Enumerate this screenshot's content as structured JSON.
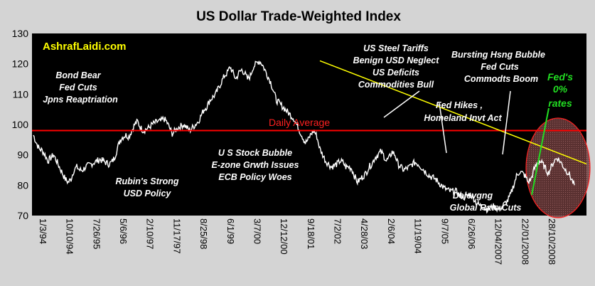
{
  "chart_data": {
    "type": "line",
    "title": "US Dollar Trade-Weighted Index",
    "xlabel": "",
    "ylabel": "",
    "ylim": [
      70,
      130
    ],
    "yticks": [
      70,
      80,
      90,
      100,
      110,
      120,
      130
    ],
    "xticks": [
      "1/3/94",
      "10/10/94",
      "7/26/95",
      "5/6/96",
      "2/10/97",
      "11/17/97",
      "8/25/98",
      "6/1/99",
      "3/7/00",
      "12/12/00",
      "9/18/01",
      "7/2/02",
      "4/28/03",
      "2/6/04",
      "11/19/04",
      "9/7/05",
      "6/26/06",
      "12/04/2007",
      "22/01/2008",
      "28/10/2008"
    ],
    "series": [
      {
        "values": [
          96.5,
          94,
          92,
          91.5,
          90,
          88,
          89,
          90,
          88,
          86,
          84,
          82,
          81,
          82,
          85,
          86,
          85,
          85,
          86,
          86.5,
          87,
          87.5,
          88,
          88.5,
          88,
          87.5,
          87,
          87.5,
          89,
          92,
          95,
          96,
          96.5,
          96,
          98,
          100,
          101,
          99,
          98,
          98.5,
          99,
          100,
          100.5,
          101,
          101,
          102,
          101,
          99,
          97,
          98,
          99,
          99.5,
          100,
          99,
          98,
          99,
          100,
          101,
          103,
          105,
          106,
          108,
          109,
          110,
          112,
          114,
          116,
          117,
          119,
          117,
          115,
          117,
          118,
          117,
          115,
          116,
          119,
          120,
          121,
          120,
          118,
          116,
          114,
          111,
          108,
          107,
          106,
          105,
          104,
          103,
          102,
          100,
          98,
          96,
          94,
          95,
          97,
          98,
          96,
          92,
          90,
          88,
          87,
          86,
          86.5,
          87,
          88,
          87.5,
          86,
          86,
          85.5,
          83,
          81,
          82,
          83,
          84,
          86,
          87,
          89,
          90,
          91,
          90,
          88,
          89,
          91,
          90,
          87,
          86,
          85,
          85.5,
          86,
          87,
          87.5,
          87,
          86,
          85,
          84,
          83,
          82.5,
          82,
          81,
          80,
          79,
          78.5,
          78,
          78,
          78,
          77,
          76.5,
          76,
          76.5,
          77,
          76,
          74.5,
          73.5,
          73,
          72.5,
          72,
          72.5,
          73,
          72.5,
          72,
          73,
          74,
          75,
          77,
          80,
          83,
          84.5,
          84,
          83,
          81,
          82,
          85,
          87,
          88,
          87,
          85.5,
          84,
          86,
          88,
          89,
          88,
          86.5,
          85,
          84,
          82,
          80
        ]
      }
    ],
    "reference_lines": [
      {
        "label": "Daily Average",
        "y": 98,
        "color": "#ff0000"
      }
    ],
    "trendline": {
      "from": {
        "x": "9/18/01",
        "y": 121
      },
      "to": {
        "x": "end",
        "y": 87
      },
      "color": "#ffff00"
    },
    "line_color": "#ffffff",
    "plot_background": "#000000",
    "grid": false
  },
  "watermark": "AshrafLaidi.com",
  "annotations": {
    "bond_bear": [
      "Bond Bear",
      "Fed Cuts",
      "Jpns Reaptriation"
    ],
    "rubin": [
      "Rubin's Strong",
      "USD Policy"
    ],
    "stock_bubble": [
      "U S Stock Bubble",
      "E-zone Grwth Issues",
      "ECB Policy Woes"
    ],
    "steel": [
      "US Steel Tariffs",
      "Benign USD Neglect",
      "US Deficits",
      "Commodities Bull"
    ],
    "fed_hikes": [
      "Fed Hikes ,",
      "Homeland Invt Act"
    ],
    "housing": [
      "Bursting Hsng Bubble",
      "Fed Cuts",
      "Commodts Boom"
    ],
    "delev": [
      "Delevgng",
      "Global Rate Cuts"
    ],
    "fed_zero": [
      "Fed's",
      "0%",
      "rates"
    ],
    "daily_average": "Daily Average"
  }
}
